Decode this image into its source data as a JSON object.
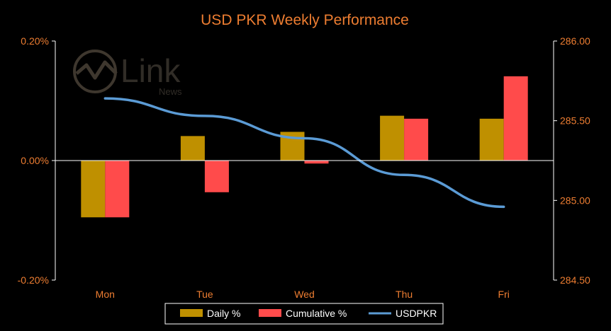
{
  "chart_data": {
    "type": "bar",
    "title": "USD PKR Weekly Performance",
    "categories": [
      "Mon",
      "Tue",
      "Wed",
      "Thu",
      "Fri"
    ],
    "series": [
      {
        "name": "Daily %",
        "type": "bar",
        "axis": "left",
        "color": "#BF9000",
        "values": [
          -0.095,
          0.041,
          0.048,
          0.075,
          0.07
        ]
      },
      {
        "name": "Cumulative %",
        "type": "bar",
        "axis": "left",
        "color": "#FF4B4B",
        "values": [
          -0.095,
          -0.053,
          -0.005,
          0.07,
          0.141
        ]
      },
      {
        "name": "USDPKR",
        "type": "line",
        "axis": "right",
        "color": "#5B9BD5",
        "values": [
          285.64,
          285.53,
          285.39,
          285.16,
          284.96
        ]
      }
    ],
    "y_left": {
      "ylim": [
        -0.002,
        0.002
      ],
      "ticks": [
        "0.20%",
        "0.00%",
        "-0.20%"
      ],
      "tick_values": [
        0.2,
        0.0,
        -0.2
      ]
    },
    "y_right": {
      "ylim": [
        284.5,
        286.0
      ],
      "ticks": [
        "286.00",
        "285.50",
        "285.00",
        "284.50"
      ],
      "tick_values": [
        286.0,
        285.5,
        285.0,
        284.5
      ]
    },
    "legend_position": "bottom",
    "grid": false
  },
  "watermark": {
    "text": "Link",
    "subtext": "News"
  },
  "colors": {
    "text": "#ED7D31",
    "axis": "#FFFFFF",
    "background": "#000000"
  }
}
